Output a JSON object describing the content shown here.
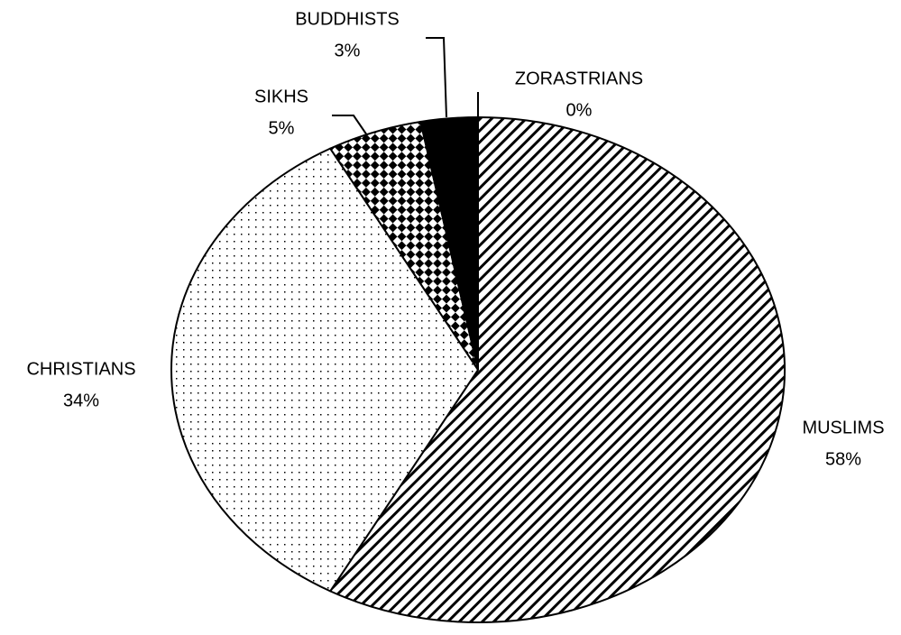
{
  "chart_data": {
    "type": "pie",
    "categories": [
      "MUSLIMS",
      "CHRISTIANS",
      "SIKHS",
      "BUDDHISTS",
      "ZORASTRIANS"
    ],
    "values": [
      58,
      34,
      5,
      3,
      0
    ],
    "value_labels": [
      "58%",
      "34%",
      "5%",
      "3%",
      "0%"
    ],
    "patterns": [
      "hatch",
      "dots",
      "checker",
      "solid",
      "none"
    ],
    "color": "#000000"
  }
}
